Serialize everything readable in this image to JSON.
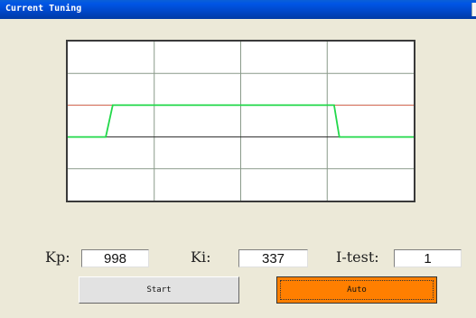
{
  "window": {
    "title": "Current Tuning"
  },
  "fields": {
    "kp": {
      "label": "Kp:",
      "value": "998"
    },
    "ki": {
      "label": "Ki:",
      "value": "337"
    },
    "itest": {
      "label": "I-test:",
      "value": "1"
    }
  },
  "buttons": {
    "start": "Start",
    "auto": "Auto"
  },
  "colors": {
    "setpoint_line": "#e0705a",
    "response_line": "#22d84a",
    "grid": "#8a9a8a",
    "auto_button": "#ff7f00"
  },
  "chart_data": {
    "type": "line",
    "grid": true,
    "series": [
      {
        "color": "#e0705a",
        "values": [
          [
            0,
            1
          ],
          [
            100,
            1
          ]
        ]
      },
      {
        "color": "#22d84a",
        "values": [
          [
            0,
            0
          ],
          [
            11,
            0
          ],
          [
            13,
            1
          ],
          [
            30,
            1
          ],
          [
            55,
            1
          ],
          [
            76,
            1
          ],
          [
            77,
            1
          ],
          [
            78.5,
            0
          ],
          [
            100,
            0
          ]
        ]
      }
    ],
    "xlim": [
      0,
      100
    ],
    "ylim": [
      -2,
      3
    ]
  }
}
